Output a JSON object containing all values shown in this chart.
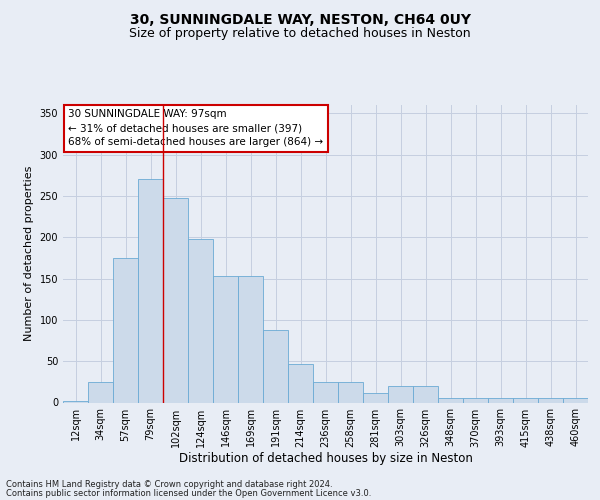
{
  "title1": "30, SUNNINGDALE WAY, NESTON, CH64 0UY",
  "title2": "Size of property relative to detached houses in Neston",
  "xlabel": "Distribution of detached houses by size in Neston",
  "ylabel": "Number of detached properties",
  "categories": [
    "12sqm",
    "34sqm",
    "57sqm",
    "79sqm",
    "102sqm",
    "124sqm",
    "146sqm",
    "169sqm",
    "191sqm",
    "214sqm",
    "236sqm",
    "258sqm",
    "281sqm",
    "303sqm",
    "326sqm",
    "348sqm",
    "370sqm",
    "393sqm",
    "415sqm",
    "438sqm",
    "460sqm"
  ],
  "values": [
    2,
    25,
    175,
    270,
    247,
    198,
    153,
    153,
    88,
    46,
    25,
    25,
    12,
    20,
    20,
    6,
    6,
    6,
    5,
    5,
    6
  ],
  "bar_color": "#ccdaea",
  "bar_edge_color": "#6aaad4",
  "property_line_x": 3.5,
  "annotation_line1": "30 SUNNINGDALE WAY: 97sqm",
  "annotation_line2": "← 31% of detached houses are smaller (397)",
  "annotation_line3": "68% of semi-detached houses are larger (864) →",
  "annotation_box_color": "#ffffff",
  "annotation_box_edge": "#cc0000",
  "property_line_color": "#cc0000",
  "ylim": [
    0,
    360
  ],
  "yticks": [
    0,
    50,
    100,
    150,
    200,
    250,
    300,
    350
  ],
  "grid_color": "#c5cfe0",
  "footer1": "Contains HM Land Registry data © Crown copyright and database right 2024.",
  "footer2": "Contains public sector information licensed under the Open Government Licence v3.0.",
  "bg_color": "#e8edf5",
  "plot_bg_color": "#e8edf5",
  "title1_fontsize": 10,
  "title2_fontsize": 9,
  "tick_fontsize": 7,
  "ylabel_fontsize": 8,
  "xlabel_fontsize": 8.5,
  "annotation_fontsize": 7.5,
  "footer_fontsize": 6
}
